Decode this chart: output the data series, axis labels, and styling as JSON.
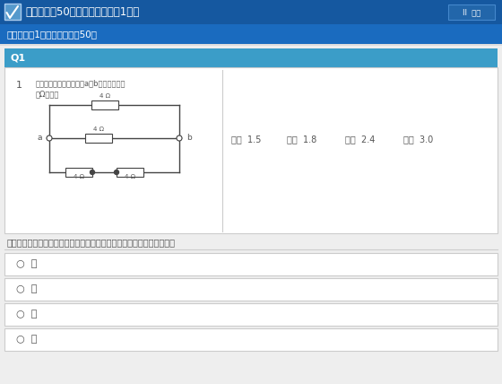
{
  "title_text": "攻略編（全50問）　チャレンジ1回目",
  "save_text": "II  保存",
  "info_text": "受講回数：1回目　出題数：50問",
  "q_label": "Q1",
  "q_number": "1",
  "q_text_line1": "図のような回路で，端子a－b間の合成抗抗",
  "q_text_line2": "【Ω】は。",
  "choice_i": "イ．  1.5",
  "choice_ro": "ロ．  1.8",
  "choice_ha": "ハ．  2.4",
  "choice_ni": "ニ．  3.0",
  "instruction": "以下の選択肢から正解を選んでラジオボタンにチェックしてください。",
  "opt_i": "○  イ",
  "opt_ro": "○  ロ",
  "opt_ha": "○  ハ",
  "opt_ni": "○  ニ",
  "header_bg": "#1558a0",
  "header_text_color": "#ffffff",
  "info_bar_bg": "#1a6bbf",
  "info_bar_text_color": "#ffffff",
  "q_header_bg": "#3b9dc8",
  "q_header_text_color": "#ffffff",
  "body_bg": "#eeeeee",
  "white": "#ffffff",
  "option_border": "#cccccc",
  "text_color": "#555555",
  "save_btn_bg": "#2266aa",
  "icon_bg": "#5599cc",
  "resistor_color": "#666666"
}
